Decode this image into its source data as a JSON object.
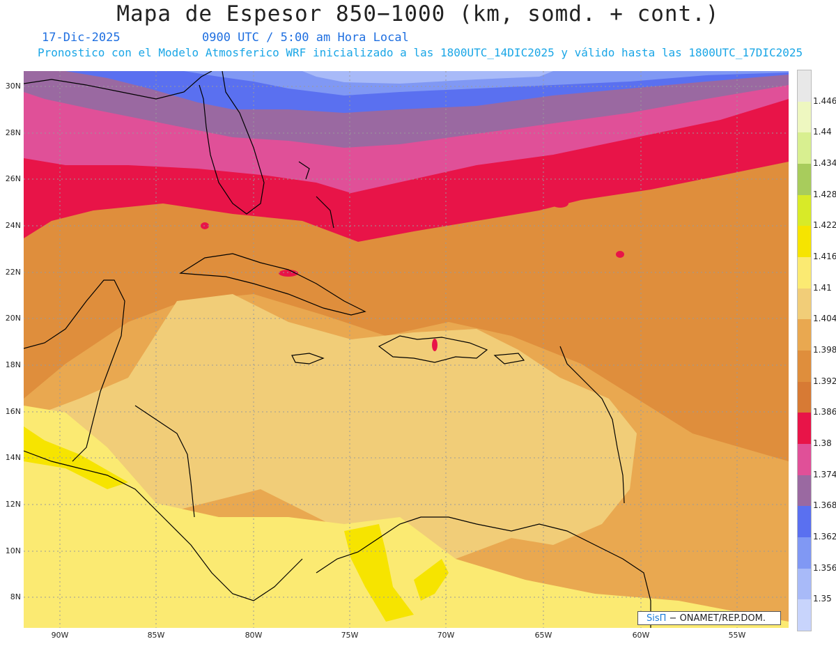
{
  "title": "Mapa de Espesor 850−1000 (km, somd. + cont.)",
  "date": "17-Dic-2025",
  "time": "0900 UTC / 5:00 am Hora Local",
  "model_info": "Pronostico con el Modelo Atmosferico WRF inicializado a las 1800UTC_14DIC2025 y válido hasta las  1800UTC_17DIC2025",
  "latitude_labels": [
    "30N",
    "28N",
    "26N",
    "24N",
    "22N",
    "20N",
    "18N",
    "16N",
    "14N",
    "12N",
    "10N",
    "8N"
  ],
  "longitude_labels": [
    "90W",
    "85W",
    "80W",
    "75W",
    "70W",
    "65W",
    "60W",
    "55W"
  ],
  "colorbar": {
    "labels": [
      "1.446",
      "1.44",
      "1.434",
      "1.428",
      "1.422",
      "1.416",
      "1.41",
      "1.404",
      "1.398",
      "1.392",
      "1.386",
      "1.38",
      "1.374",
      "1.368",
      "1.362",
      "1.356",
      "1.35"
    ],
    "colors": [
      "#e8e8e8",
      "#eef7c0",
      "#d8ef90",
      "#a8cc5c",
      "#d8ea28",
      "#f6e400",
      "#fbea72",
      "#f1cd78",
      "#e9a850",
      "#df8e3c",
      "#d77a34",
      "#e81448",
      "#e05098",
      "#9a69a1",
      "#5a70f0",
      "#8098f4",
      "#a8baf8",
      "#c8d4fc"
    ]
  },
  "credit": {
    "brand": "SisΠ",
    "text": " − ONAMET/REP.DOM."
  }
}
